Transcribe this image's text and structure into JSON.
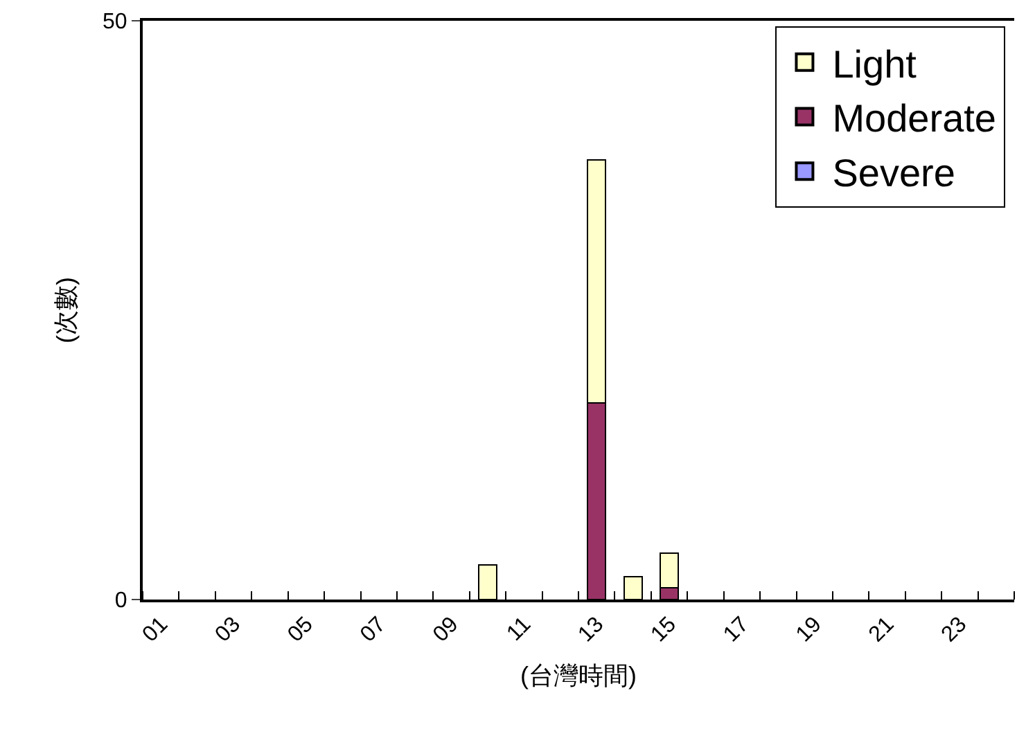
{
  "chart_data": {
    "type": "bar",
    "stacked": true,
    "xlabel": "(台灣時間)",
    "ylabel": "(次數)",
    "categories": [
      "01",
      null,
      "03",
      null,
      "05",
      null,
      "07",
      null,
      "09",
      null,
      "11",
      null,
      "13",
      null,
      "15",
      null,
      "17",
      null,
      "19",
      null,
      "21",
      null,
      "23",
      null
    ],
    "series": [
      {
        "name": "Severe",
        "color": "#9999ff",
        "values": [
          0,
          0,
          0,
          0,
          0,
          0,
          0,
          0,
          0,
          0,
          0,
          0,
          0,
          0,
          0,
          0,
          0,
          0,
          0,
          0,
          0,
          0,
          0,
          0
        ]
      },
      {
        "name": "Moderate",
        "color": "#993366",
        "values": [
          0,
          0,
          0,
          0,
          0,
          0,
          0,
          0,
          0,
          0,
          0,
          0,
          17,
          0,
          1,
          0,
          0,
          0,
          0,
          0,
          0,
          0,
          0,
          0
        ]
      },
      {
        "name": "Light",
        "color": "#ffffcc",
        "values": [
          0,
          0,
          0,
          0,
          0,
          0,
          0,
          0,
          0,
          3,
          0,
          0,
          21,
          2,
          3,
          0,
          0,
          0,
          0,
          0,
          0,
          0,
          0,
          0
        ]
      }
    ],
    "ylim": [
      0,
      50
    ],
    "yticks": [
      0,
      50
    ],
    "legend": "top right"
  }
}
